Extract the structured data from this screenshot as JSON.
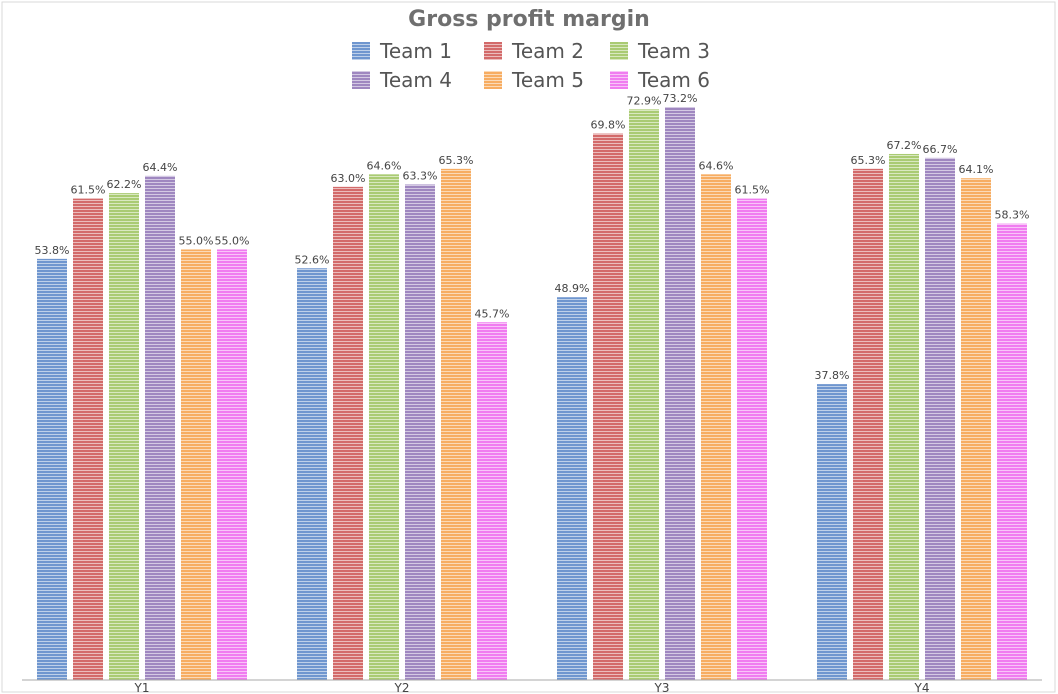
{
  "chart_data": {
    "type": "bar",
    "title": "Gross profit margin",
    "xlabel": "",
    "ylabel": "",
    "ylim": [
      0,
      80
    ],
    "legend_position": "top",
    "grid": false,
    "categories": [
      "Y1",
      "Y2",
      "Y3",
      "Y4"
    ],
    "series": [
      {
        "name": "Team 1",
        "color": "#6f96cf",
        "values": [
          53.8,
          52.6,
          48.9,
          37.8
        ],
        "labels": [
          "53.8%",
          "52.6%",
          "48.9%",
          "37.8%"
        ]
      },
      {
        "name": "Team 2",
        "color": "#d36a6a",
        "values": [
          61.5,
          63.0,
          69.8,
          65.3
        ],
        "labels": [
          "61.5%",
          "63.0%",
          "69.8%",
          "65.3%"
        ]
      },
      {
        "name": "Team 3",
        "color": "#aacb73",
        "values": [
          62.2,
          64.6,
          72.9,
          67.2
        ],
        "labels": [
          "62.2%",
          "64.6%",
          "72.9%",
          "67.2%"
        ]
      },
      {
        "name": "Team 4",
        "color": "#9f87c0",
        "values": [
          64.4,
          63.3,
          73.2,
          66.7
        ],
        "labels": [
          "64.4%",
          "63.3%",
          "73.2%",
          "66.7%"
        ]
      },
      {
        "name": "Team 5",
        "color": "#f7ad62",
        "values": [
          55.0,
          65.3,
          64.6,
          64.1
        ],
        "labels": [
          "55.0%",
          "65.3%",
          "64.6%",
          "64.1%"
        ]
      },
      {
        "name": "Team 6",
        "color": "#f07cf0",
        "values": [
          55.0,
          45.7,
          61.5,
          58.3
        ],
        "labels": [
          "55.0%",
          "45.7%",
          "61.5%",
          "58.3%"
        ]
      }
    ]
  }
}
